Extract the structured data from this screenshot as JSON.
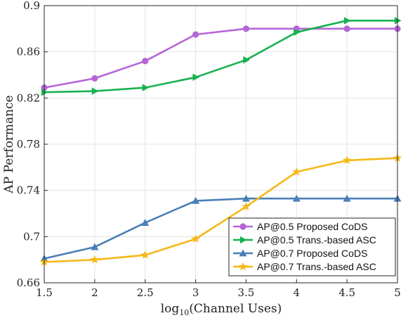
{
  "chart_data": {
    "type": "line",
    "title": "",
    "xlabel": "log",
    "xlabel_sub": "10",
    "xlabel_rest": "(Channel Uses)",
    "ylabel": "AP Performance",
    "xlim": [
      1.5,
      5
    ],
    "ylim": [
      0.66,
      0.9
    ],
    "x": [
      1.5,
      2,
      2.5,
      3,
      3.5,
      4,
      4.5,
      5
    ],
    "x_ticks": [
      "1.5",
      "2",
      "2.5",
      "3",
      "3.5",
      "4",
      "4.5",
      "5"
    ],
    "y_tick_values": [
      0.66,
      0.7,
      0.74,
      0.78,
      0.82,
      0.86,
      0.9
    ],
    "y_ticks": [
      "0.66",
      "0.7",
      "0.74",
      "0.78",
      "0.82",
      "0.86",
      "0.9"
    ],
    "grid": true,
    "legend_position": "bottom-right",
    "series": [
      {
        "name": "AP@0.5 Proposed CoDS",
        "color": "#b565d8",
        "marker": "circle",
        "values": [
          0.829,
          0.837,
          0.852,
          0.875,
          0.88,
          0.88,
          0.88,
          0.88
        ]
      },
      {
        "name": "AP@0.5 Trans.-based ASC",
        "color": "#17b24f",
        "marker": "triangle-right",
        "values": [
          0.825,
          0.826,
          0.829,
          0.838,
          0.853,
          0.877,
          0.887,
          0.887
        ]
      },
      {
        "name": "AP@0.7 Proposed CoDS",
        "color": "#4a7fb8",
        "marker": "triangle-up",
        "values": [
          0.681,
          0.691,
          0.712,
          0.731,
          0.733,
          0.733,
          0.733,
          0.733
        ]
      },
      {
        "name": "AP@0.7 Trans.-based ASC",
        "color": "#f5b817",
        "marker": "star",
        "values": [
          0.678,
          0.68,
          0.684,
          0.698,
          0.726,
          0.756,
          0.766,
          0.768
        ]
      }
    ]
  }
}
